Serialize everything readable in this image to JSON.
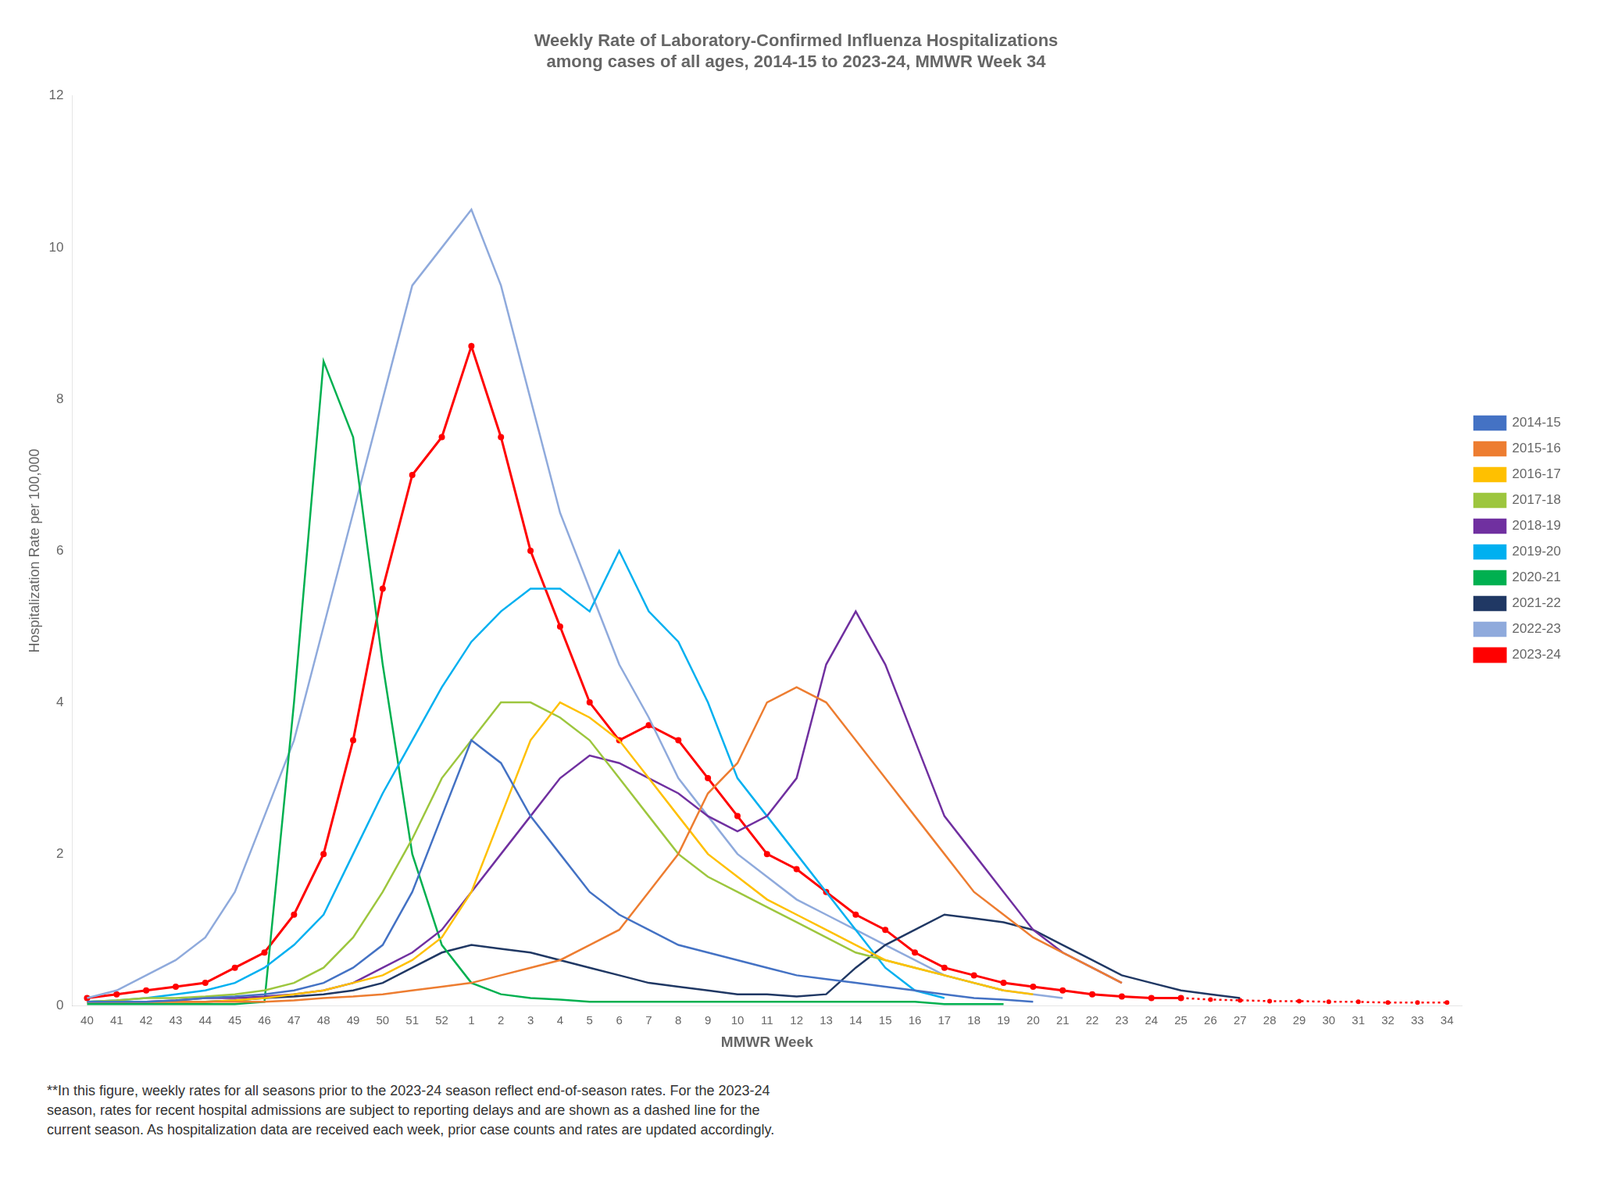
{
  "chart_data": {
    "type": "line",
    "title": "Weekly Rate of Laboratory-Confirmed Influenza Hospitalizations\namong cases of all ages, 2014-15 to 2023-24, MMWR Week 34",
    "xlabel": "MMWR Week",
    "ylabel": "Hospitalization Rate per 100,000",
    "footnote": "**In this figure, weekly rates for all seasons prior to the 2023-24 season reflect end-of-season rates. For the 2023-24\nseason, rates for recent hospital admissions are subject to reporting delays and are shown as a dashed line for the\ncurrent season. As hospitalization data are received each week, prior case counts and rates are updated accordingly.",
    "categories": [
      "40",
      "41",
      "42",
      "43",
      "44",
      "45",
      "46",
      "47",
      "48",
      "49",
      "50",
      "51",
      "52",
      "1",
      "2",
      "3",
      "4",
      "5",
      "6",
      "7",
      "8",
      "9",
      "10",
      "11",
      "12",
      "13",
      "14",
      "15",
      "16",
      "17",
      "18",
      "19",
      "20",
      "21",
      "22",
      "23",
      "24",
      "25",
      "26",
      "27",
      "28",
      "29",
      "30",
      "31",
      "32",
      "33",
      "34"
    ],
    "ylim": [
      0,
      12
    ],
    "yticks": [
      0,
      2,
      4,
      6,
      8,
      10,
      12
    ],
    "grid": false,
    "legend": "right",
    "series": [
      {
        "name": "2014-15",
        "color": "#4472c4",
        "line_style": "solid",
        "values": [
          0.05,
          0.05,
          0.05,
          0.07,
          0.1,
          0.12,
          0.15,
          0.2,
          0.3,
          0.5,
          0.8,
          1.5,
          2.5,
          3.5,
          3.2,
          2.5,
          2.0,
          1.5,
          1.2,
          1.0,
          0.8,
          0.7,
          0.6,
          0.5,
          0.4,
          0.35,
          0.3,
          0.25,
          0.2,
          0.15,
          0.1,
          0.08,
          0.05,
          null,
          null,
          null,
          null,
          null,
          null,
          null,
          null,
          null,
          null,
          null,
          null,
          null,
          null
        ]
      },
      {
        "name": "2015-16",
        "color": "#ed7d31",
        "line_style": "solid",
        "values": [
          0.05,
          0.05,
          0.05,
          0.05,
          0.05,
          0.05,
          0.05,
          0.07,
          0.1,
          0.12,
          0.15,
          0.2,
          0.25,
          0.3,
          0.4,
          0.5,
          0.6,
          0.8,
          1.0,
          1.5,
          2.0,
          2.8,
          3.2,
          4.0,
          4.2,
          4.0,
          3.5,
          3.0,
          2.5,
          2.0,
          1.5,
          1.2,
          0.9,
          0.7,
          0.5,
          0.3,
          null,
          null,
          null,
          null,
          null,
          null,
          null,
          null,
          null,
          null,
          null
        ]
      },
      {
        "name": "2016-17",
        "color": "#ffc000",
        "line_style": "solid",
        "values": [
          0.05,
          0.05,
          0.05,
          0.05,
          0.05,
          0.07,
          0.1,
          0.15,
          0.2,
          0.3,
          0.4,
          0.6,
          0.9,
          1.5,
          2.5,
          3.5,
          4.0,
          3.8,
          3.5,
          3.0,
          2.5,
          2.0,
          1.7,
          1.4,
          1.2,
          1.0,
          0.8,
          0.6,
          0.5,
          0.4,
          0.3,
          0.2,
          0.15,
          null,
          null,
          null,
          null,
          null,
          null,
          null,
          null,
          null,
          null,
          null,
          null,
          null,
          null
        ]
      },
      {
        "name": "2017-18",
        "color": "#9dc63e",
        "line_style": "solid",
        "values": [
          0.05,
          0.07,
          0.1,
          0.1,
          0.12,
          0.15,
          0.2,
          0.3,
          0.5,
          0.9,
          1.5,
          2.2,
          3.0,
          3.5,
          4.0,
          4.0,
          3.8,
          3.5,
          3.0,
          2.5,
          2.0,
          1.7,
          1.5,
          1.3,
          1.1,
          0.9,
          0.7,
          0.6,
          0.5,
          0.4,
          0.3,
          0.2,
          null,
          null,
          null,
          null,
          null,
          null,
          null,
          null,
          null,
          null,
          null,
          null,
          null,
          null,
          null
        ]
      },
      {
        "name": "2018-19",
        "color": "#7030a0",
        "line_style": "solid",
        "values": [
          0.05,
          0.05,
          0.05,
          0.07,
          0.1,
          0.1,
          0.12,
          0.15,
          0.2,
          0.3,
          0.5,
          0.7,
          1.0,
          1.5,
          2.0,
          2.5,
          3.0,
          3.3,
          3.2,
          3.0,
          2.8,
          2.5,
          2.3,
          2.5,
          3.0,
          4.5,
          5.2,
          4.5,
          3.5,
          2.5,
          2.0,
          1.5,
          1.0,
          0.7,
          0.5,
          0.3,
          null,
          null,
          null,
          null,
          null,
          null,
          null,
          null,
          null,
          null,
          null
        ]
      },
      {
        "name": "2019-20",
        "color": "#00b0f0",
        "line_style": "solid",
        "values": [
          0.05,
          0.07,
          0.1,
          0.15,
          0.2,
          0.3,
          0.5,
          0.8,
          1.2,
          2.0,
          2.8,
          3.5,
          4.2,
          4.8,
          5.2,
          5.5,
          5.5,
          5.2,
          6.0,
          5.2,
          4.8,
          4.0,
          3.0,
          2.5,
          2.0,
          1.5,
          1.0,
          0.5,
          0.2,
          0.1,
          null,
          null,
          null,
          null,
          null,
          null,
          null,
          null,
          null,
          null,
          null,
          null,
          null,
          null,
          null,
          null,
          null
        ]
      },
      {
        "name": "2020-21",
        "color": "#00b050",
        "line_style": "solid",
        "values": [
          0.02,
          0.02,
          0.02,
          0.02,
          0.02,
          0.02,
          0.05,
          4.0,
          8.5,
          7.5,
          4.5,
          2.0,
          0.8,
          0.3,
          0.15,
          0.1,
          0.08,
          0.05,
          0.05,
          0.05,
          0.05,
          0.05,
          0.05,
          0.05,
          0.05,
          0.05,
          0.05,
          0.05,
          0.05,
          0.02,
          0.02,
          0.02,
          null,
          null,
          null,
          null,
          null,
          null,
          null,
          null,
          null,
          null,
          null,
          null,
          null,
          null,
          null
        ]
      },
      {
        "name": "2021-22",
        "color": "#203864",
        "line_style": "solid",
        "values": [
          0.05,
          0.05,
          0.05,
          0.05,
          0.05,
          0.07,
          0.1,
          0.12,
          0.15,
          0.2,
          0.3,
          0.5,
          0.7,
          0.8,
          0.75,
          0.7,
          0.6,
          0.5,
          0.4,
          0.3,
          0.25,
          0.2,
          0.15,
          0.15,
          0.12,
          0.15,
          0.5,
          0.8,
          1.0,
          1.2,
          1.15,
          1.1,
          1.0,
          0.8,
          0.6,
          0.4,
          0.3,
          0.2,
          0.15,
          0.1,
          null,
          null,
          null,
          null,
          null,
          null,
          null
        ]
      },
      {
        "name": "2022-23",
        "color": "#8faadc",
        "line_style": "solid",
        "values": [
          0.1,
          0.2,
          0.4,
          0.6,
          0.9,
          1.5,
          2.5,
          3.5,
          5.0,
          6.5,
          8.0,
          9.5,
          10.0,
          10.5,
          9.5,
          8.0,
          6.5,
          5.5,
          4.5,
          3.8,
          3.0,
          2.5,
          2.0,
          1.7,
          1.4,
          1.2,
          1.0,
          0.8,
          0.6,
          0.4,
          0.3,
          0.2,
          0.15,
          0.1,
          null,
          null,
          null,
          null,
          null,
          null,
          null,
          null,
          null,
          null,
          null,
          null,
          null
        ]
      },
      {
        "name": "2023-24",
        "color": "#ff0000",
        "line_style": "solid",
        "marker": "circle",
        "values": [
          0.1,
          0.15,
          0.2,
          0.25,
          0.3,
          0.5,
          0.7,
          1.2,
          2.0,
          3.5,
          5.5,
          7.0,
          7.5,
          8.7,
          7.5,
          6.0,
          5.0,
          4.0,
          3.5,
          3.7,
          3.5,
          3.0,
          2.5,
          2.0,
          1.8,
          1.5,
          1.2,
          1.0,
          0.7,
          0.5,
          0.4,
          0.3,
          0.25,
          0.2,
          0.15,
          0.12,
          0.1,
          0.1,
          null,
          null,
          null,
          null,
          null,
          null,
          null,
          null,
          null
        ]
      },
      {
        "name": "2023-24",
        "color": "#ff0000",
        "line_style": "dotted",
        "marker": "circle",
        "values": [
          null,
          null,
          null,
          null,
          null,
          null,
          null,
          null,
          null,
          null,
          null,
          null,
          null,
          null,
          null,
          null,
          null,
          null,
          null,
          null,
          null,
          null,
          null,
          null,
          null,
          null,
          null,
          null,
          null,
          null,
          null,
          null,
          null,
          null,
          null,
          null,
          null,
          0.1,
          0.08,
          0.07,
          0.06,
          0.06,
          0.05,
          0.05,
          0.04,
          0.04,
          0.04
        ]
      }
    ]
  }
}
